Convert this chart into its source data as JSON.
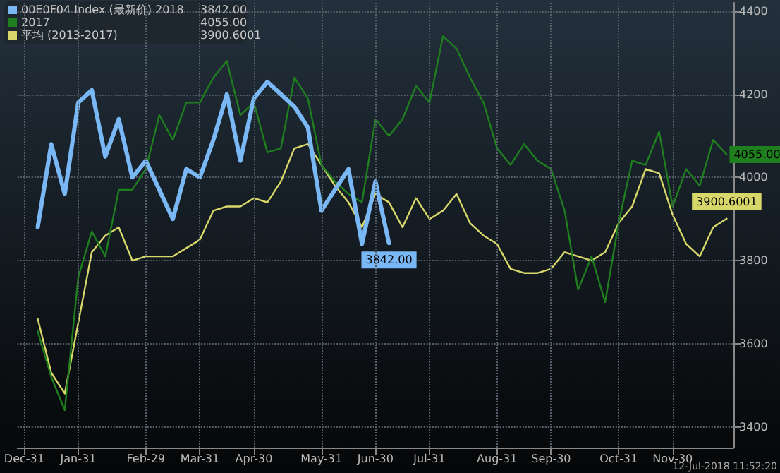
{
  "chart_data": {
    "type": "line",
    "legend": "top left",
    "grid": true,
    "marker": "none",
    "line_style": "solid",
    "ylim": [
      3350,
      4420
    ],
    "yticks": [
      3400,
      3600,
      3800,
      4000,
      4200,
      4400
    ],
    "annotations": [
      "12-Jul-2018 11:52:20"
    ],
    "categories": [
      "Dec-31",
      null,
      null,
      null,
      "Jan-31",
      null,
      null,
      null,
      null,
      "Feb-29",
      null,
      null,
      null,
      "Mar-31",
      null,
      null,
      null,
      "Apr-30",
      null,
      null,
      null,
      null,
      "May-31",
      null,
      null,
      null,
      "Jun-30",
      null,
      null,
      null,
      "Jul-31",
      null,
      null,
      null,
      null,
      "Aug-31",
      null,
      null,
      null,
      "Sep-30",
      null,
      null,
      null,
      null,
      "Oct-31",
      null,
      null,
      null,
      "Nov-30",
      null,
      null,
      null,
      null
    ],
    "series": [
      {
        "name": "平均 (2013-2017)",
        "color": "#d8d86a",
        "values": [
          null,
          3660,
          3530,
          3480,
          3650,
          3820,
          3860,
          3880,
          3800,
          3810,
          3810,
          3810,
          3830,
          3850,
          3920,
          3930,
          3930,
          3950,
          3940,
          3990,
          4070,
          4080,
          4030,
          3980,
          3940,
          3880,
          3960,
          3940,
          3880,
          3950,
          3900,
          3920,
          3960,
          3890,
          3860,
          3840,
          3780,
          3770,
          3770,
          3780,
          3820,
          3810,
          3800,
          3820,
          3890,
          3930,
          4020,
          4010,
          3910,
          3840,
          3810,
          3880,
          3900.6001
        ],
        "value_labels": [
          null,
          null,
          null,
          null,
          null,
          null,
          null,
          null,
          null,
          null,
          null,
          null,
          null,
          null,
          null,
          null,
          null,
          null,
          null,
          null,
          null,
          null,
          null,
          null,
          null,
          null,
          null,
          null,
          null,
          null,
          null,
          null,
          null,
          null,
          null,
          null,
          null,
          null,
          null,
          null,
          null,
          null,
          null,
          null,
          null,
          null,
          null,
          null,
          null,
          null,
          null,
          null,
          "3900.6001"
        ]
      },
      {
        "name": "2017",
        "color": "#1f7f1f",
        "values": [
          null,
          3630,
          3520,
          3440,
          3760,
          3870,
          3810,
          3970,
          3970,
          4020,
          4150,
          4090,
          4180,
          4180,
          4240,
          4280,
          4150,
          4180,
          4060,
          4070,
          4240,
          4190,
          4030,
          3990,
          3960,
          3940,
          4140,
          4100,
          4140,
          4220,
          4180,
          4340,
          4310,
          4240,
          4180,
          4070,
          4030,
          4080,
          4040,
          4020,
          3920,
          3730,
          3810,
          3700,
          3890,
          4040,
          4030,
          4110,
          3930,
          4020,
          3980,
          4090,
          4055
        ],
        "value_labels": [
          null,
          null,
          null,
          null,
          null,
          null,
          null,
          null,
          null,
          null,
          null,
          null,
          null,
          null,
          null,
          null,
          null,
          null,
          null,
          null,
          null,
          null,
          null,
          null,
          null,
          null,
          null,
          null,
          null,
          null,
          null,
          null,
          null,
          null,
          null,
          null,
          null,
          null,
          null,
          null,
          null,
          null,
          null,
          null,
          null,
          null,
          null,
          null,
          null,
          null,
          null,
          null,
          "4055.00"
        ]
      },
      {
        "name": "00E0F04 Index (最新价) 2018",
        "color": "#7ab8f5",
        "values": [
          null,
          3880,
          4080,
          3960,
          4180,
          4210,
          4050,
          4140,
          4000,
          4040,
          3970,
          3900,
          4020,
          4000,
          4090,
          4200,
          4040,
          4190,
          4230,
          4200,
          4170,
          4120,
          3920,
          3970,
          4020,
          3840,
          3990,
          3842,
          null,
          null,
          null,
          null,
          null,
          null,
          null,
          null,
          null,
          null,
          null,
          null,
          null,
          null,
          null,
          null,
          null,
          null,
          null,
          null,
          null,
          null,
          null,
          null,
          null
        ],
        "value_labels": [
          null,
          null,
          null,
          null,
          null,
          null,
          null,
          null,
          null,
          null,
          null,
          null,
          null,
          null,
          null,
          null,
          null,
          null,
          null,
          null,
          null,
          null,
          null,
          null,
          null,
          null,
          null,
          "3842.00",
          null,
          null,
          null,
          null,
          null,
          null,
          null,
          null,
          null,
          null,
          null,
          null,
          null,
          null,
          null,
          null,
          null,
          null,
          null,
          null,
          null,
          null,
          null,
          null,
          null
        ]
      }
    ]
  }
}
